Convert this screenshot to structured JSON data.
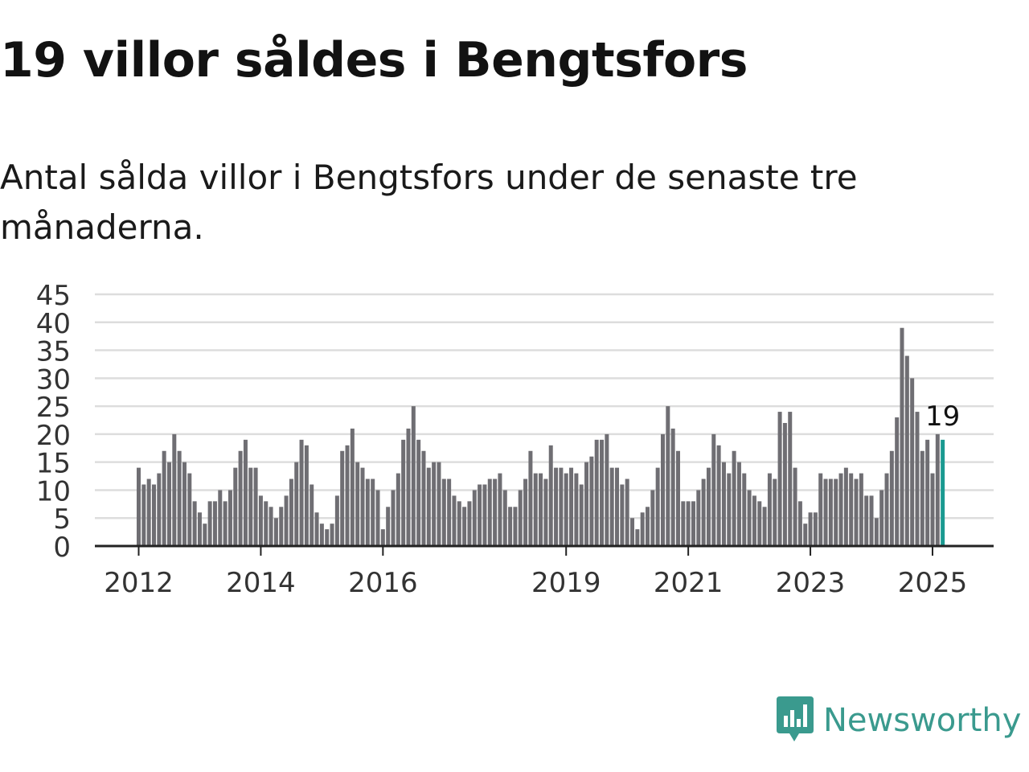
{
  "title": "19 villor såldes i Bengtsfors",
  "subtitle": "Antal sålda villor i Bengtsfors under de senaste tre månaderna.",
  "brand": {
    "name": "Newsworthy",
    "icon": "newsworthy-logo-icon",
    "color": "#3a9a8e"
  },
  "colors": {
    "bar": "#6f6e73",
    "highlight": "#1a9a91",
    "grid": "#dddddd",
    "axis": "#222222"
  },
  "chart_data": {
    "type": "bar",
    "title": "19 villor såldes i Bengtsfors",
    "xlabel": "",
    "ylabel": "",
    "ylim": [
      0,
      45
    ],
    "y_ticks": [
      0,
      5,
      10,
      15,
      20,
      25,
      30,
      35,
      40,
      45
    ],
    "x_ticks": [
      "2012",
      "2014",
      "2016",
      "2019",
      "2021",
      "2023",
      "2025"
    ],
    "grid": true,
    "start_month": "2012-01",
    "highlight_last": true,
    "last_label": "19",
    "values": [
      14,
      11,
      12,
      11,
      13,
      17,
      15,
      20,
      17,
      15,
      13,
      8,
      6,
      4,
      8,
      8,
      10,
      8,
      10,
      14,
      17,
      19,
      14,
      14,
      9,
      8,
      7,
      5,
      7,
      9,
      12,
      15,
      19,
      18,
      11,
      6,
      4,
      3,
      4,
      9,
      17,
      18,
      21,
      15,
      14,
      12,
      12,
      10,
      3,
      7,
      10,
      13,
      19,
      21,
      25,
      19,
      17,
      14,
      15,
      15,
      12,
      12,
      9,
      8,
      7,
      8,
      10,
      11,
      11,
      12,
      12,
      13,
      10,
      7,
      7,
      10,
      12,
      17,
      13,
      13,
      12,
      18,
      14,
      14,
      13,
      14,
      13,
      11,
      15,
      16,
      19,
      19,
      20,
      14,
      14,
      11,
      12,
      5,
      3,
      6,
      7,
      10,
      14,
      20,
      25,
      21,
      17,
      8,
      8,
      8,
      10,
      12,
      14,
      20,
      18,
      15,
      13,
      17,
      15,
      13,
      10,
      9,
      8,
      7,
      13,
      12,
      24,
      22,
      24,
      14,
      8,
      4,
      6,
      6,
      13,
      12,
      12,
      12,
      13,
      14,
      13,
      12,
      13,
      9,
      9,
      5,
      10,
      13,
      17,
      23,
      39,
      34,
      30,
      24,
      17,
      19,
      13,
      20,
      19
    ]
  }
}
